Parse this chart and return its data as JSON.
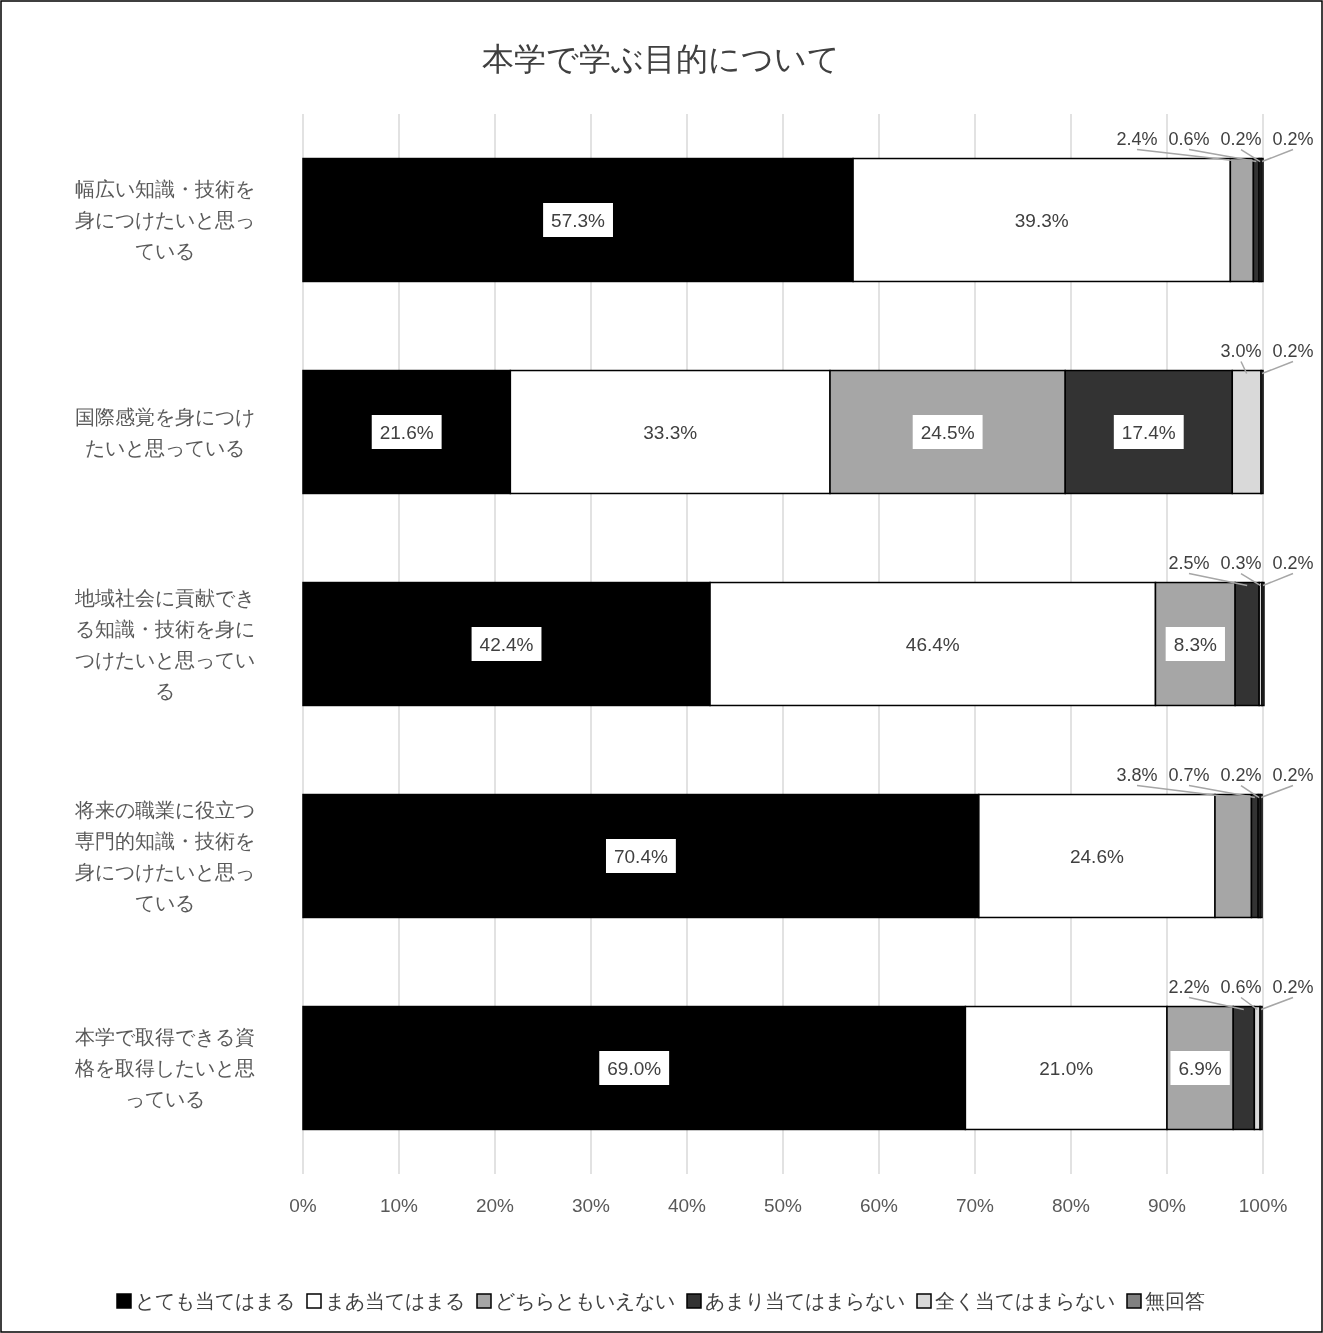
{
  "chart_data": {
    "type": "bar",
    "orientation": "horizontal",
    "stacked": true,
    "title": "本学で学ぶ目的について",
    "categories": [
      "幅広い知識・技術を身につけたいと思っている",
      "国際感覚を身につけたいと思っている",
      "地域社会に貢献できる知識・技術を身につけたいと思っている",
      "将来の職業に役立つ専門的知識・技術を身につけたいと思っている",
      "本学で取得できる資格を取得したいと思っている"
    ],
    "series": [
      {
        "name": "とても当てはまる",
        "color": "#000000",
        "values": [
          57.3,
          21.6,
          42.4,
          70.4,
          69.0
        ],
        "value_labels": [
          "57.3%",
          "21.6%",
          "42.4%",
          "70.4%",
          "69.0%"
        ]
      },
      {
        "name": "まあ当てはまる",
        "color": "#ffffff",
        "values": [
          39.3,
          33.3,
          46.4,
          24.6,
          21.0
        ],
        "value_labels": [
          "39.3%",
          "33.3%",
          "46.4%",
          "24.6%",
          "21.0%"
        ]
      },
      {
        "name": "どちらともいえない",
        "color": "#a6a6a6",
        "values": [
          2.4,
          24.5,
          8.3,
          3.8,
          6.9
        ],
        "value_labels": [
          "2.4%",
          "24.5%",
          "8.3%",
          "3.8%",
          "6.9%"
        ]
      },
      {
        "name": "あまり当てはまらない",
        "color": "#333333",
        "values": [
          0.6,
          17.4,
          2.5,
          0.7,
          2.2
        ],
        "value_labels": [
          "0.6%",
          "17.4%",
          "2.5%",
          "0.7%",
          "2.2%"
        ]
      },
      {
        "name": "全く当てはまらない",
        "color": "#d9d9d9",
        "values": [
          0.2,
          3.0,
          0.3,
          0.2,
          0.6
        ],
        "value_labels": [
          "0.2%",
          "3.0%",
          "0.3%",
          "0.2%",
          "0.6%"
        ]
      },
      {
        "name": "無回答",
        "color": "#808080",
        "values": [
          0.2,
          0.2,
          0.2,
          0.2,
          0.2
        ],
        "value_labels": [
          "0.2%",
          "0.2%",
          "0.2%",
          "0.2%",
          "0.2%"
        ]
      }
    ],
    "xlim": [
      0,
      100
    ],
    "xticks": [
      {
        "value": 0,
        "label": "0%"
      },
      {
        "value": 10,
        "label": "10%"
      },
      {
        "value": 20,
        "label": "20%"
      },
      {
        "value": 30,
        "label": "30%"
      },
      {
        "value": 40,
        "label": "40%"
      },
      {
        "value": 50,
        "label": "50%"
      },
      {
        "value": 60,
        "label": "60%"
      },
      {
        "value": 70,
        "label": "70%"
      },
      {
        "value": 80,
        "label": "80%"
      },
      {
        "value": 90,
        "label": "90%"
      },
      {
        "value": 100,
        "label": "100%"
      }
    ],
    "grid": "x",
    "legend": "bottom"
  }
}
